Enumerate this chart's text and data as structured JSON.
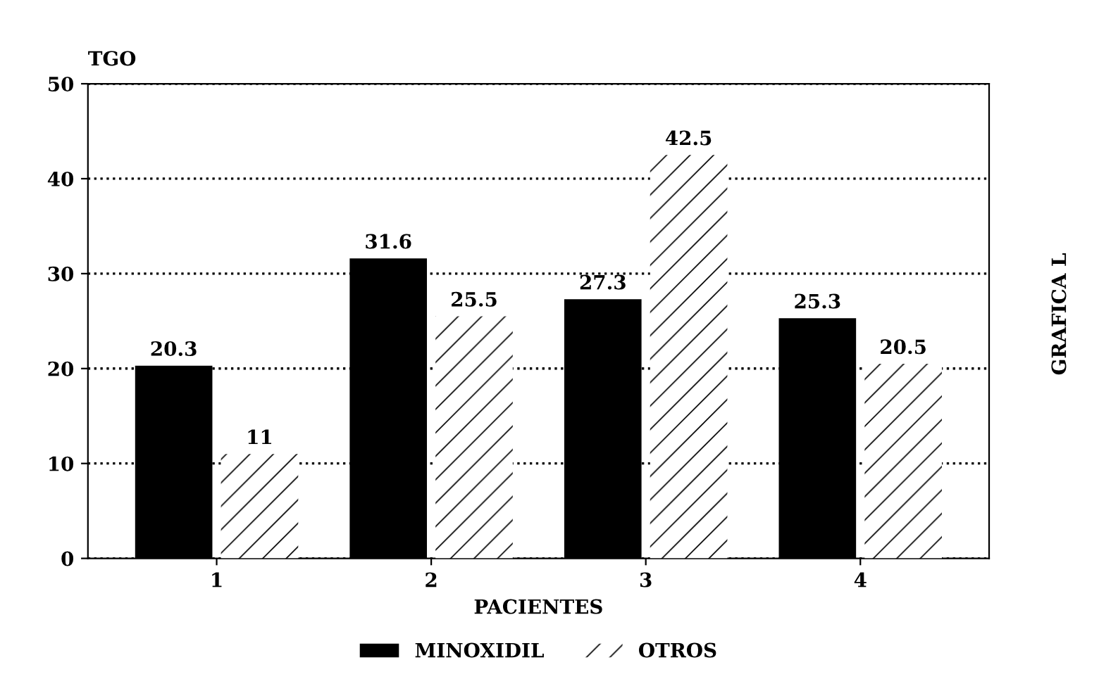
{
  "chart_data": {
    "type": "bar",
    "ylabel": "TGO",
    "xlabel": "PACIENTES",
    "annotations": [
      "GRAFICA L"
    ],
    "categories": [
      "1",
      "2",
      "3",
      "4"
    ],
    "series": [
      {
        "name": "MINOXIDIL",
        "color": "#000000",
        "values": [
          20.3,
          31.6,
          27.3,
          25.3
        ]
      },
      {
        "name": "OTROS",
        "color": "#ffffff",
        "values": [
          11,
          25.5,
          42.5,
          20.5
        ]
      }
    ],
    "ylim": [
      0,
      50
    ],
    "yticks": [
      0,
      10,
      20,
      30,
      40,
      50
    ],
    "grid": "y",
    "data_labels": true,
    "legend": "bottom"
  }
}
